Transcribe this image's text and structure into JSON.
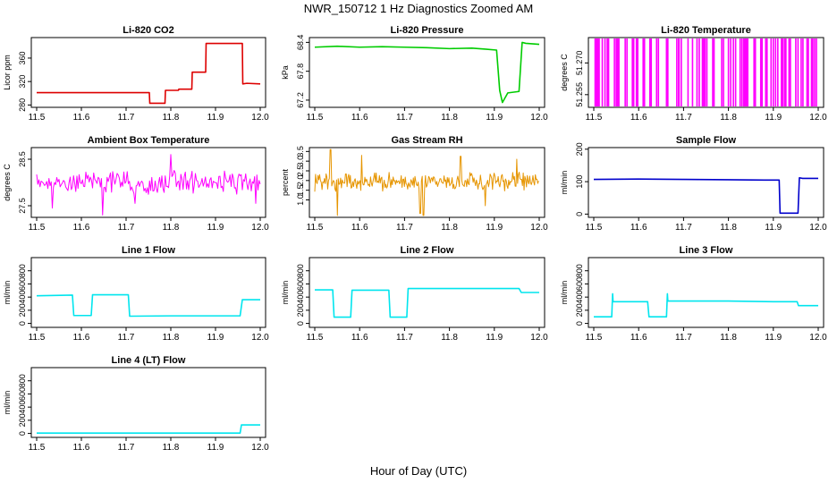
{
  "figure": {
    "title": "NWR_150712  1 Hz Diagnostics Zoomed AM",
    "xlabel": "Hour of Day (UTC)"
  },
  "colors": {
    "co2": "#dd0000",
    "pressure": "#00cc00",
    "temperature": "#ff00ff",
    "ambient": "#ff00ff",
    "rh": "#e69500",
    "sample_flow": "#0000cc",
    "line_flow": "#00e5ee"
  },
  "chart_data": [
    {
      "type": "line",
      "title": "Li-820 CO2",
      "ylabel": "Licor ppm",
      "xlim": [
        11.5,
        12.0
      ],
      "ylim": [
        276,
        395
      ],
      "xticks": [
        11.5,
        11.6,
        11.7,
        11.8,
        11.9,
        12.0
      ],
      "xtick_labels": [
        "11.5",
        "11.6",
        "11.7",
        "11.8",
        "11.9",
        "12.0"
      ],
      "yticks": [
        280,
        320,
        360
      ],
      "ytick_labels": [
        "280",
        "320",
        "360"
      ],
      "series": [
        {
          "color_key": "co2",
          "x": [
            11.5,
            11.752,
            11.753,
            11.787,
            11.788,
            11.817,
            11.818,
            11.847,
            11.848,
            11.878,
            11.879,
            11.955,
            11.96,
            11.961,
            11.97,
            12.0
          ],
          "y": [
            301,
            301,
            283,
            283,
            305,
            305,
            307,
            307,
            336,
            336,
            385,
            385,
            385,
            316,
            317,
            316
          ]
        }
      ]
    },
    {
      "type": "line",
      "title": "Li-820 Pressure",
      "ylabel": "kPa",
      "xlim": [
        11.5,
        12.0
      ],
      "ylim": [
        67.05,
        68.5
      ],
      "xticks": [
        11.5,
        11.6,
        11.7,
        11.8,
        11.9,
        12.0
      ],
      "xtick_labels": [
        "11.5",
        "11.6",
        "11.7",
        "11.8",
        "11.9",
        "12.0"
      ],
      "yticks": [
        67.2,
        67.8,
        68.4
      ],
      "ytick_labels": [
        "67.2",
        "67.8",
        "68.4"
      ],
      "series": [
        {
          "color_key": "pressure",
          "x": [
            11.5,
            11.55,
            11.6,
            11.65,
            11.7,
            11.75,
            11.8,
            11.85,
            11.88,
            11.905,
            11.912,
            11.918,
            11.93,
            11.955,
            11.962,
            11.97,
            12.0
          ],
          "y": [
            68.3,
            68.32,
            68.3,
            68.31,
            68.3,
            68.29,
            68.27,
            68.28,
            68.26,
            68.24,
            67.4,
            67.15,
            67.35,
            67.38,
            68.4,
            68.38,
            68.36
          ]
        }
      ]
    },
    {
      "type": "line",
      "title": "Li-820 Temperature",
      "ylabel": "degrees C",
      "xlim": [
        11.5,
        12.0
      ],
      "ylim": [
        51.249,
        51.282
      ],
      "xticks": [
        11.5,
        11.6,
        11.7,
        11.8,
        11.9,
        12.0
      ],
      "xtick_labels": [
        "11.5",
        "11.6",
        "11.7",
        "11.8",
        "11.9",
        "12.0"
      ],
      "yticks": [
        51.255,
        51.27
      ],
      "ytick_labels": [
        "51.255",
        "51.270"
      ],
      "low_value": 51.249,
      "high_value": 51.282,
      "toggle_x": [
        11.503,
        11.506,
        11.509,
        11.512,
        11.519,
        11.525,
        11.53,
        11.533,
        11.546,
        11.55,
        11.553,
        11.556,
        11.57,
        11.574,
        11.586,
        11.589,
        11.595,
        11.598,
        11.61,
        11.613,
        11.625,
        11.628,
        11.64,
        11.644,
        11.662,
        11.665,
        11.685,
        11.689,
        11.69,
        11.695,
        11.71,
        11.72,
        11.73,
        11.735,
        11.742,
        11.745,
        11.748,
        11.752,
        11.765,
        11.768,
        11.785,
        11.789,
        11.8,
        11.805,
        11.811,
        11.816,
        11.826,
        11.83,
        11.834,
        11.837,
        11.84,
        11.843,
        11.857,
        11.86,
        11.872,
        11.875,
        11.883,
        11.886,
        11.895,
        11.9,
        11.905,
        11.91,
        11.918,
        11.921,
        11.925,
        11.928,
        11.935,
        11.938,
        11.95,
        11.955,
        11.962,
        11.966,
        11.975,
        11.978,
        11.985,
        11.988,
        11.992,
        11.996
      ]
    },
    {
      "type": "line",
      "title": "Ambient Box Temperature",
      "ylabel": "degrees C",
      "xlim": [
        11.5,
        12.0
      ],
      "ylim": [
        27.25,
        28.75
      ],
      "xticks": [
        11.5,
        11.6,
        11.7,
        11.8,
        11.9,
        12.0
      ],
      "xtick_labels": [
        "11.5",
        "11.6",
        "11.7",
        "11.8",
        "11.9",
        "12.0"
      ],
      "yticks": [
        27.5,
        28.5
      ],
      "ytick_labels": [
        "27.5",
        "28.5"
      ],
      "noise": {
        "base": 28.0,
        "amplitude": 0.28,
        "step": 0.0025,
        "spikes": [
          [
            11.535,
            27.45
          ],
          [
            11.648,
            27.3
          ],
          [
            11.72,
            27.55
          ],
          [
            11.8,
            28.6
          ],
          [
            11.99,
            27.55
          ]
        ]
      },
      "series": [
        {
          "color_key": "ambient"
        }
      ]
    },
    {
      "type": "line",
      "title": "Gas Stream RH",
      "ylabel": "percent",
      "xlim": [
        11.5,
        12.0
      ],
      "ylim": [
        0.1,
        3.7
      ],
      "xticks": [
        11.5,
        11.6,
        11.7,
        11.8,
        11.9,
        12.0
      ],
      "xtick_labels": [
        "11.5",
        "11.6",
        "11.7",
        "11.8",
        "11.9",
        "12.0"
      ],
      "yticks": [
        1.0,
        1.5,
        2.0,
        2.5,
        3.0,
        3.5
      ],
      "ytick_labels": [
        "1.0",
        "1.5",
        "2.0",
        "2.5",
        "3.0",
        "3.5"
      ],
      "noise": {
        "base": 1.95,
        "amplitude": 0.55,
        "step": 0.0018,
        "spikes": [
          [
            11.535,
            3.6
          ],
          [
            11.55,
            0.2
          ],
          [
            11.605,
            3.3
          ],
          [
            11.735,
            0.3
          ],
          [
            11.742,
            0.2
          ],
          [
            11.825,
            3.25
          ],
          [
            11.88,
            0.7
          ],
          [
            11.95,
            3.1
          ]
        ]
      },
      "series": [
        {
          "color_key": "rh"
        }
      ]
    },
    {
      "type": "line",
      "title": "Sample Flow",
      "ylabel": "ml/min",
      "xlim": [
        11.5,
        12.0
      ],
      "ylim": [
        -10,
        205
      ],
      "xticks": [
        11.5,
        11.6,
        11.7,
        11.8,
        11.9,
        12.0
      ],
      "xtick_labels": [
        "11.5",
        "11.6",
        "11.7",
        "11.8",
        "11.9",
        "12.0"
      ],
      "yticks": [
        0,
        100,
        200
      ],
      "ytick_labels": [
        "0",
        "100",
        "200"
      ],
      "series": [
        {
          "color_key": "sample_flow",
          "x": [
            11.5,
            11.6,
            11.7,
            11.8,
            11.88,
            11.913,
            11.915,
            11.955,
            11.958,
            11.965,
            12.0
          ],
          "y": [
            107,
            108,
            107,
            106,
            105,
            105,
            3,
            3,
            112,
            110,
            110
          ]
        }
      ]
    },
    {
      "type": "line",
      "title": "Line 1 Flow",
      "ylabel": "ml/min",
      "xlim": [
        11.5,
        12.0
      ],
      "ylim": [
        -60,
        1000
      ],
      "xticks": [
        11.5,
        11.6,
        11.7,
        11.8,
        11.9,
        12.0
      ],
      "xtick_labels": [
        "11.5",
        "11.6",
        "11.7",
        "11.8",
        "11.9",
        "12.0"
      ],
      "yticks": [
        0,
        200,
        400,
        600,
        800
      ],
      "ytick_labels": [
        "0",
        "200",
        "400",
        "600",
        "800"
      ],
      "series": [
        {
          "color_key": "line_flow",
          "x": [
            11.5,
            11.58,
            11.583,
            11.622,
            11.625,
            11.705,
            11.708,
            11.8,
            11.955,
            11.96,
            12.0
          ],
          "y": [
            420,
            430,
            120,
            120,
            435,
            435,
            110,
            115,
            115,
            360,
            360
          ]
        }
      ]
    },
    {
      "type": "line",
      "title": "Line 2 Flow",
      "ylabel": "ml/min",
      "xlim": [
        11.5,
        12.0
      ],
      "ylim": [
        -60,
        1000
      ],
      "xticks": [
        11.5,
        11.6,
        11.7,
        11.8,
        11.9,
        12.0
      ],
      "xtick_labels": [
        "11.5",
        "11.6",
        "11.7",
        "11.8",
        "11.9",
        "12.0"
      ],
      "yticks": [
        0,
        200,
        400,
        600,
        800
      ],
      "ytick_labels": [
        "0",
        "200",
        "400",
        "600",
        "800"
      ],
      "series": [
        {
          "color_key": "line_flow",
          "x": [
            11.5,
            11.54,
            11.543,
            11.58,
            11.583,
            11.665,
            11.668,
            11.705,
            11.708,
            11.8,
            11.955,
            11.96,
            12.0
          ],
          "y": [
            510,
            510,
            95,
            95,
            505,
            505,
            95,
            95,
            530,
            530,
            530,
            470,
            470
          ]
        }
      ]
    },
    {
      "type": "line",
      "title": "Line 3 Flow",
      "ylabel": "ml/min",
      "xlim": [
        11.5,
        12.0
      ],
      "ylim": [
        -60,
        1000
      ],
      "xticks": [
        11.5,
        11.6,
        11.7,
        11.8,
        11.9,
        12.0
      ],
      "xtick_labels": [
        "11.5",
        "11.6",
        "11.7",
        "11.8",
        "11.9",
        "12.0"
      ],
      "yticks": [
        0,
        200,
        400,
        600,
        800
      ],
      "ytick_labels": [
        "0",
        "200",
        "400",
        "600",
        "800"
      ],
      "series": [
        {
          "color_key": "line_flow",
          "x": [
            11.5,
            11.54,
            11.542,
            11.543,
            11.62,
            11.623,
            11.662,
            11.664,
            11.665,
            11.8,
            11.9,
            11.953,
            11.956,
            12.0
          ],
          "y": [
            100,
            100,
            450,
            330,
            330,
            100,
            100,
            450,
            340,
            340,
            330,
            330,
            270,
            270
          ]
        }
      ]
    },
    {
      "type": "line",
      "title": "Line 4 (LT) Flow",
      "ylabel": "ml/min",
      "xlim": [
        11.5,
        12.0
      ],
      "ylim": [
        -60,
        1000
      ],
      "xticks": [
        11.5,
        11.6,
        11.7,
        11.8,
        11.9,
        12.0
      ],
      "xtick_labels": [
        "11.5",
        "11.6",
        "11.7",
        "11.8",
        "11.9",
        "12.0"
      ],
      "yticks": [
        0,
        200,
        400,
        600,
        800
      ],
      "ytick_labels": [
        "0",
        "200",
        "400",
        "600",
        "800"
      ],
      "series": [
        {
          "color_key": "line_flow",
          "x": [
            11.5,
            11.7,
            11.955,
            11.958,
            11.965,
            12.0
          ],
          "y": [
            5,
            5,
            5,
            130,
            130,
            130
          ]
        }
      ]
    }
  ]
}
